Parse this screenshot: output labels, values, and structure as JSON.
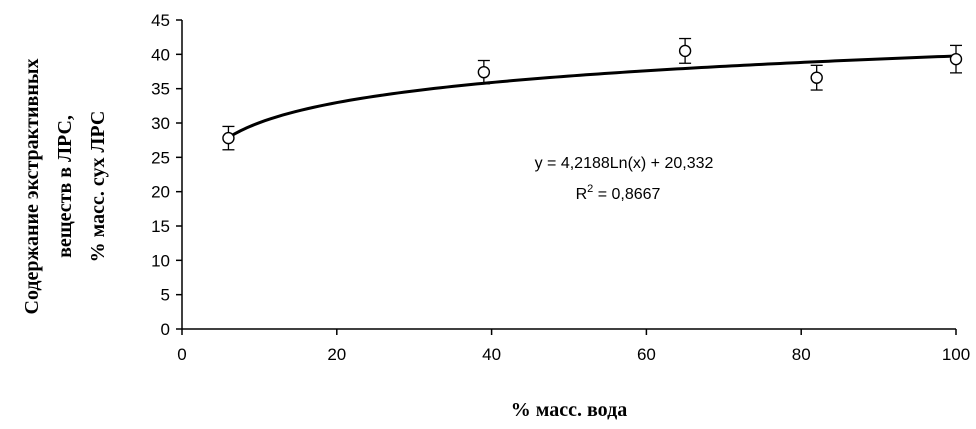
{
  "chart_data": {
    "type": "scatter",
    "xlabel": "% масс. вода",
    "ylabel_lines": [
      "Содержание экстрактивных",
      "веществ в ЛРС,",
      "% масс. сух ЛРС"
    ],
    "xlim": [
      0,
      100
    ],
    "ylim": [
      0,
      45
    ],
    "x_ticks": [
      0,
      20,
      40,
      60,
      80,
      100
    ],
    "y_ticks": [
      0,
      5,
      10,
      15,
      20,
      25,
      30,
      35,
      40,
      45
    ],
    "grid": false,
    "series": [
      {
        "marker": "open-circle",
        "x": [
          6,
          39,
          65,
          82,
          100
        ],
        "y": [
          27.8,
          37.4,
          40.5,
          36.6,
          39.3
        ],
        "error": [
          1.7,
          1.7,
          1.8,
          1.8,
          2.0
        ]
      }
    ],
    "trendline": {
      "type": "logarithmic",
      "a": 4.2188,
      "b": 20.332,
      "x_from": 6,
      "x_to": 100
    },
    "annotation": {
      "equation": "y = 4,2188Ln(x) + 20,332",
      "r2_prefix": "R",
      "r2_sup": "2",
      "r2_value": " = 0,8667"
    }
  }
}
